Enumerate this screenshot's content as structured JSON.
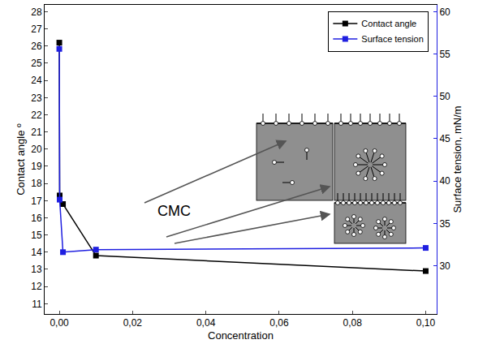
{
  "chart_data": {
    "type": "scatter",
    "x_label": "Concentration",
    "y_label": "Contact angle º",
    "y2_label": "Surface tension, mN/m",
    "annotations": [
      "CMC"
    ],
    "x": [
      0,
      0.0001,
      0.001,
      0.01,
      0.1
    ],
    "xlim": [
      -0.004,
      0.103
    ],
    "xticks": [
      {
        "value": 0,
        "label": "0,00"
      },
      {
        "value": 0.02,
        "label": "0,02"
      },
      {
        "value": 0.04,
        "label": "0,04"
      },
      {
        "value": 0.06,
        "label": "0,06"
      },
      {
        "value": 0.08,
        "label": "0,08"
      },
      {
        "value": 0.1,
        "label": "0,10"
      }
    ],
    "ylim": [
      10.4,
      28.4
    ],
    "yticks": [
      11,
      12,
      13,
      14,
      15,
      16,
      17,
      18,
      19,
      20,
      21,
      22,
      23,
      24,
      25,
      26,
      27,
      28
    ],
    "y2lim": [
      24.3,
      60.8
    ],
    "y2ticks": [
      30,
      35,
      40,
      45,
      50,
      55,
      60
    ],
    "grid": false,
    "legend": "top right",
    "series": [
      {
        "name": "Contact angle",
        "color": "#000000",
        "marker": "square",
        "line_style": "solid",
        "values": [
          26.2,
          17.3,
          16.8,
          13.8,
          12.9
        ]
      },
      {
        "name": "Surface tension",
        "color": "#1f1fe0",
        "marker": "square",
        "line_style": "solid",
        "axis": "y2",
        "values": [
          55.6,
          37.8,
          31.6,
          31.9,
          32.1
        ]
      }
    ]
  }
}
